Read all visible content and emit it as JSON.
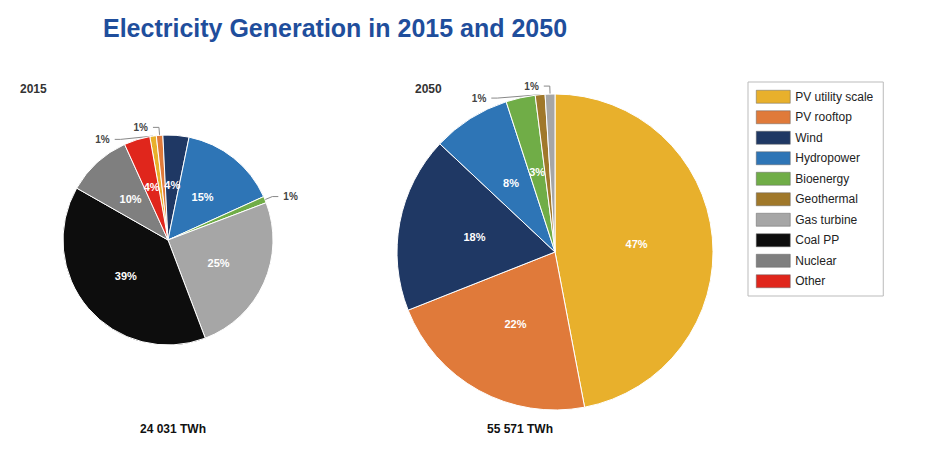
{
  "chart_data": {
    "type": "pie",
    "title": "Electricity Generation in 2015 and 2050",
    "categories": [
      "PV utility scale",
      "PV rooftop",
      "Wind",
      "Hydropower",
      "Bioenergy",
      "Geothermal",
      "Gas turbine",
      "Coal PP",
      "Nuclear",
      "Other"
    ],
    "colors": [
      "#e8b02c",
      "#e07a3a",
      "#1f3864",
      "#2e75b6",
      "#70ad47",
      "#a0782a",
      "#a6a6a6",
      "#0d0d0d",
      "#7f7f7f",
      "#e0261c"
    ],
    "series": [
      {
        "name": "2015",
        "total": "24 031 TWh",
        "values": [
          1,
          1,
          4,
          15,
          1,
          null,
          25,
          39,
          10,
          4
        ],
        "value_labels": [
          "1%",
          "1%",
          "4%",
          "15%",
          "1%",
          null,
          "25%",
          "39%",
          "10%",
          "4%"
        ]
      },
      {
        "name": "2050",
        "total": "55 571 TWh",
        "values": [
          47,
          22,
          18,
          8,
          3,
          1,
          1,
          null,
          null,
          null
        ],
        "value_labels": [
          "47%",
          "22%",
          "18%",
          "8%",
          "3%",
          "1%",
          "1%",
          null,
          null,
          null
        ]
      }
    ],
    "legend": "right",
    "data_labels": true
  }
}
